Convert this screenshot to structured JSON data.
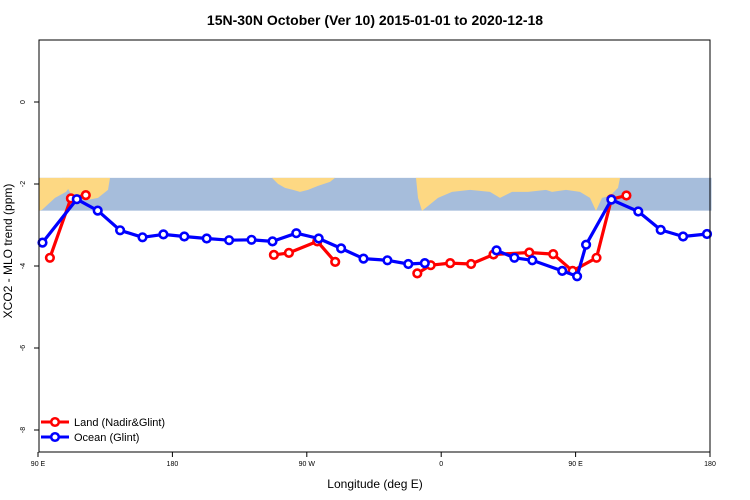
{
  "chart_data": {
    "type": "line",
    "title": "15N-30N October (Ver 10)   2015-01-01 to 2020-12-18",
    "xlabel": "Longitude (deg E)",
    "ylabel": "XCO2 - MLO trend (ppm)",
    "xlim": [
      90,
      540
    ],
    "ylim": [
      -8.4,
      1.5
    ],
    "x_ticks": [
      {
        "value": 90,
        "label": "90 E"
      },
      {
        "value": 180,
        "label": "180"
      },
      {
        "value": 270,
        "label": "90 W"
      },
      {
        "value": 360,
        "label": "0"
      },
      {
        "value": 450,
        "label": "90 E"
      },
      {
        "value": 540,
        "label": "180"
      }
    ],
    "y_ticks": [
      {
        "value": 0,
        "label": "0"
      },
      {
        "value": -2,
        "label": "-2"
      },
      {
        "value": -4,
        "label": "-4"
      },
      {
        "value": -6,
        "label": "-6"
      },
      {
        "value": -8,
        "label": "-8"
      }
    ],
    "map_band": {
      "y_top": -1.85,
      "y_bottom": -2.65,
      "ocean_color": "#a6bddb",
      "land_color": "#fdd883"
    },
    "legend_position": "bottom-left",
    "series": [
      {
        "name": "Land (Nadir&Glint)",
        "color": "#ff0000",
        "points": [
          [
            [
              98,
              -3.8
            ],
            [
              112,
              -2.35
            ],
            [
              122,
              -2.27
            ]
          ],
          [
            [
              248,
              -3.73
            ],
            [
              258,
              -3.68
            ],
            [
              277,
              -3.4
            ],
            [
              289,
              -3.9
            ]
          ],
          [
            [
              344,
              -4.18
            ],
            [
              353,
              -3.98
            ],
            [
              366,
              -3.93
            ],
            [
              380,
              -3.95
            ],
            [
              395,
              -3.72
            ],
            [
              419,
              -3.67
            ],
            [
              435,
              -3.71
            ],
            [
              448,
              -4.12
            ],
            [
              464,
              -3.8
            ],
            [
              474,
              -2.37
            ],
            [
              484,
              -2.28
            ]
          ]
        ]
      },
      {
        "name": "Ocean (Glint)",
        "color": "#0000ff",
        "points": [
          [
            [
              93,
              -3.43
            ],
            [
              116,
              -2.37
            ],
            [
              130,
              -2.65
            ],
            [
              145,
              -3.13
            ],
            [
              160,
              -3.3
            ],
            [
              174,
              -3.23
            ],
            [
              188,
              -3.28
            ],
            [
              203,
              -3.33
            ],
            [
              218,
              -3.37
            ],
            [
              233,
              -3.36
            ],
            [
              247,
              -3.4
            ],
            [
              263,
              -3.2
            ],
            [
              278,
              -3.33
            ],
            [
              293,
              -3.57
            ],
            [
              308,
              -3.82
            ],
            [
              324,
              -3.86
            ],
            [
              338,
              -3.95
            ],
            [
              349,
              -3.93
            ]
          ],
          [
            [
              397,
              -3.62
            ],
            [
              409,
              -3.8
            ],
            [
              421,
              -3.86
            ],
            [
              441,
              -4.12
            ],
            [
              451,
              -4.25
            ],
            [
              457,
              -3.48
            ],
            [
              474,
              -2.38
            ],
            [
              492,
              -2.67
            ],
            [
              507,
              -3.12
            ],
            [
              522,
              -3.28
            ],
            [
              538,
              -3.22
            ]
          ]
        ]
      }
    ]
  }
}
